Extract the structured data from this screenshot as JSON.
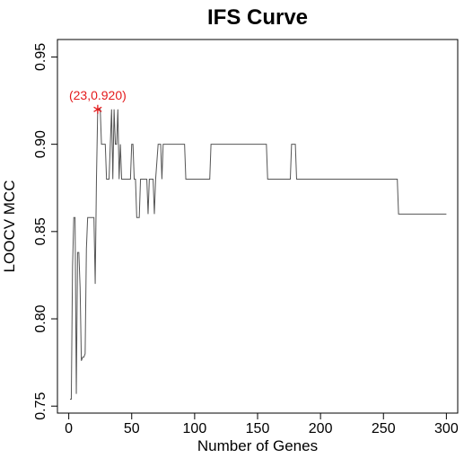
{
  "chart_data": {
    "type": "line",
    "title": "IFS Curve",
    "xlabel": "Number of Genes",
    "ylabel": "LOOCV MCC",
    "xlim": [
      -9,
      309
    ],
    "ylim": [
      0.746,
      0.96
    ],
    "x_ticks": [
      0,
      50,
      100,
      150,
      200,
      250,
      300
    ],
    "y_ticks": [
      0.75,
      0.8,
      0.85,
      0.9,
      0.95
    ],
    "x_tick_labels": [
      "0",
      "50",
      "100",
      "150",
      "200",
      "250",
      "300"
    ],
    "y_tick_labels": [
      "0.75",
      "0.80",
      "0.85",
      "0.90",
      "0.95"
    ],
    "grid": false,
    "series": [
      {
        "color": "#555555",
        "points": [
          [
            1,
            0.754
          ],
          [
            2,
            0.754
          ],
          [
            3,
            0.83
          ],
          [
            4,
            0.858
          ],
          [
            5,
            0.858
          ],
          [
            6,
            0.757
          ],
          [
            7,
            0.838
          ],
          [
            8,
            0.838
          ],
          [
            9,
            0.818
          ],
          [
            10,
            0.776
          ],
          [
            11,
            0.778
          ],
          [
            12,
            0.778
          ],
          [
            13,
            0.78
          ],
          [
            14,
            0.84
          ],
          [
            15,
            0.858
          ],
          [
            16,
            0.858
          ],
          [
            17,
            0.858
          ],
          [
            18,
            0.858
          ],
          [
            19,
            0.858
          ],
          [
            20,
            0.858
          ],
          [
            21,
            0.82
          ],
          [
            22,
            0.88
          ],
          [
            23,
            0.92
          ],
          [
            24,
            0.92
          ],
          [
            25,
            0.92
          ],
          [
            26,
            0.9
          ],
          [
            27,
            0.9
          ],
          [
            28,
            0.9
          ],
          [
            29,
            0.9
          ],
          [
            30,
            0.88
          ],
          [
            31,
            0.88
          ],
          [
            32,
            0.88
          ],
          [
            33,
            0.9
          ],
          [
            34,
            0.92
          ],
          [
            35,
            0.88
          ],
          [
            36,
            0.92
          ],
          [
            37,
            0.9
          ],
          [
            38,
            0.9
          ],
          [
            39,
            0.92
          ],
          [
            40,
            0.88
          ],
          [
            41,
            0.9
          ],
          [
            42,
            0.88
          ],
          [
            43,
            0.88
          ],
          [
            44,
            0.88
          ],
          [
            45,
            0.88
          ],
          [
            46,
            0.88
          ],
          [
            47,
            0.88
          ],
          [
            48,
            0.88
          ],
          [
            49,
            0.88
          ],
          [
            50,
            0.9
          ],
          [
            51,
            0.9
          ],
          [
            52,
            0.88
          ],
          [
            53,
            0.88
          ],
          [
            54,
            0.858
          ],
          [
            55,
            0.858
          ],
          [
            56,
            0.858
          ],
          [
            57,
            0.88
          ],
          [
            58,
            0.88
          ],
          [
            59,
            0.88
          ],
          [
            60,
            0.88
          ],
          [
            61,
            0.88
          ],
          [
            62,
            0.88
          ],
          [
            63,
            0.86
          ],
          [
            64,
            0.88
          ],
          [
            65,
            0.88
          ],
          [
            66,
            0.88
          ],
          [
            67,
            0.88
          ],
          [
            68,
            0.86
          ],
          [
            69,
            0.88
          ],
          [
            70,
            0.89
          ],
          [
            71,
            0.9
          ],
          [
            72,
            0.9
          ],
          [
            73,
            0.9
          ],
          [
            74,
            0.88
          ],
          [
            75,
            0.9
          ],
          [
            76,
            0.9
          ],
          [
            78,
            0.9
          ],
          [
            80,
            0.9
          ],
          [
            82,
            0.9
          ],
          [
            84,
            0.9
          ],
          [
            86,
            0.9
          ],
          [
            88,
            0.9
          ],
          [
            90,
            0.9
          ],
          [
            92,
            0.9
          ],
          [
            93,
            0.88
          ],
          [
            100,
            0.88
          ],
          [
            105,
            0.88
          ],
          [
            110,
            0.88
          ],
          [
            112,
            0.88
          ],
          [
            113,
            0.9
          ],
          [
            120,
            0.9
          ],
          [
            130,
            0.9
          ],
          [
            140,
            0.9
          ],
          [
            150,
            0.9
          ],
          [
            157,
            0.9
          ],
          [
            158,
            0.88
          ],
          [
            165,
            0.88
          ],
          [
            170,
            0.88
          ],
          [
            176,
            0.88
          ],
          [
            177,
            0.9
          ],
          [
            178,
            0.9
          ],
          [
            179,
            0.9
          ],
          [
            180,
            0.9
          ],
          [
            181,
            0.88
          ],
          [
            190,
            0.88
          ],
          [
            200,
            0.88
          ],
          [
            210,
            0.88
          ],
          [
            220,
            0.88
          ],
          [
            230,
            0.88
          ],
          [
            240,
            0.88
          ],
          [
            250,
            0.88
          ],
          [
            260,
            0.88
          ],
          [
            261,
            0.88
          ],
          [
            262,
            0.86
          ],
          [
            270,
            0.86
          ],
          [
            280,
            0.86
          ],
          [
            290,
            0.86
          ],
          [
            300,
            0.86
          ]
        ]
      }
    ],
    "highlight": {
      "x": 23,
      "y": 0.92,
      "label": "(23,0.920)",
      "color": "#e41a1c",
      "marker": "asterisk"
    }
  }
}
